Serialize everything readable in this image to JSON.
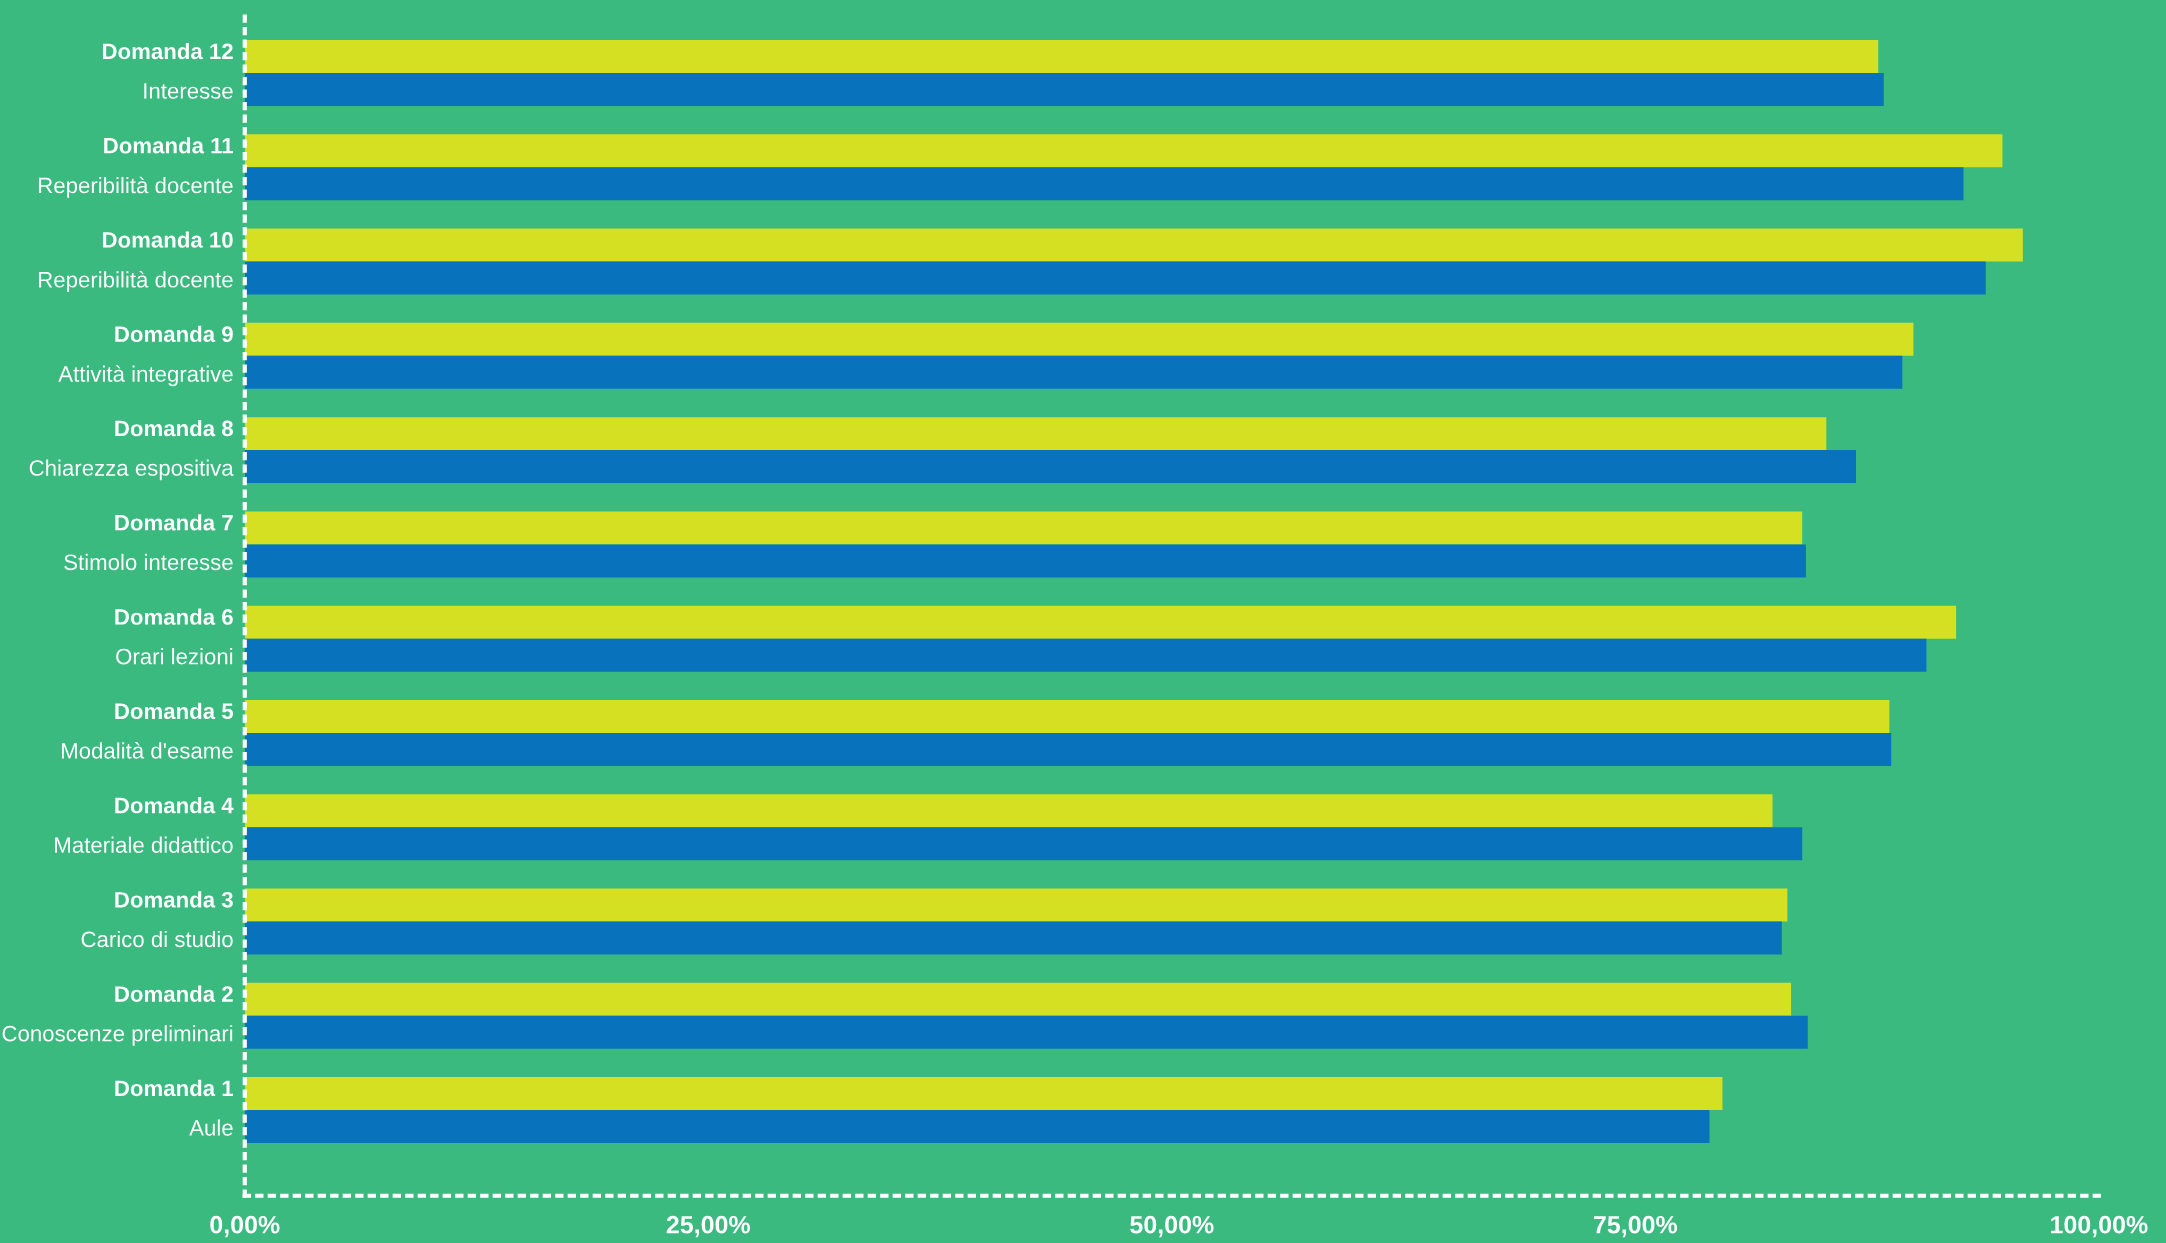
{
  "chart_data": {
    "type": "bar",
    "orientation": "horizontal",
    "categories": [
      "Domanda 12\nInteresse",
      "Domanda 11\nReperibilità docente",
      "Domanda 10\nReperibilità docente",
      "Domanda 9\nAttività integrative",
      "Domanda 8\nChiarezza espositiva",
      "Domanda 7\nStimolo interesse",
      "Domanda 6\nOrari lezioni",
      "Domanda 5\nModalità d'esame",
      "Domanda 4\nMateriale didattico",
      "Domanda 3\nCarico di studio",
      "Domanda 2\nConoscenze preliminari",
      "Domanda 1\nAule"
    ],
    "series": [
      {
        "color": "#d4e021",
        "values": [
          88.1,
          94.8,
          95.9,
          90.0,
          85.3,
          84.0,
          92.3,
          88.7,
          82.4,
          83.2,
          83.4,
          79.7
        ]
      },
      {
        "color": "#0872bd",
        "values": [
          88.4,
          92.7,
          93.9,
          89.4,
          86.9,
          84.2,
          90.7,
          88.8,
          84.0,
          82.9,
          84.3,
          79.0
        ]
      }
    ],
    "xlim": [
      0,
      100
    ],
    "xticks": [
      {
        "value": 0,
        "label": "0,00%"
      },
      {
        "value": 25,
        "label": "25,00%"
      },
      {
        "value": 50,
        "label": "50,00%"
      },
      {
        "value": 75,
        "label": "75,00%"
      },
      {
        "value": 100,
        "label": "100,00%"
      }
    ],
    "grid": false,
    "legend": false
  }
}
